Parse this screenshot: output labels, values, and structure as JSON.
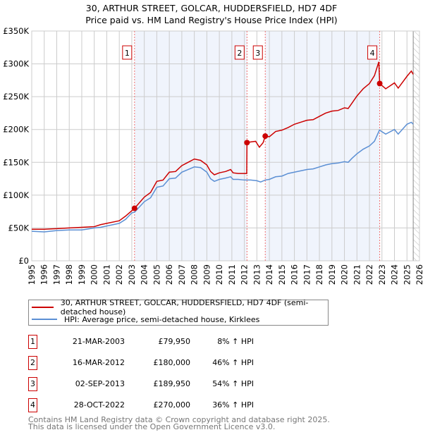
{
  "header": {
    "title": "30, ARTHUR STREET, GOLCAR, HUDDERSFIELD, HD7 4DF",
    "subtitle": "Price paid vs. HM Land Registry's House Price Index (HPI)"
  },
  "chart_data": {
    "type": "line",
    "title": "30, ARTHUR STREET, GOLCAR, HUDDERSFIELD, HD7 4DF",
    "subtitle": "Price paid vs. HM Land Registry's House Price Index (HPI)",
    "xlim": [
      1995,
      2026
    ],
    "ylim": [
      0,
      350000
    ],
    "x_ticks": [
      "1995",
      "1996",
      "1997",
      "1998",
      "1999",
      "2000",
      "2001",
      "2002",
      "2003",
      "2004",
      "2005",
      "2006",
      "2007",
      "2008",
      "2009",
      "2010",
      "2011",
      "2012",
      "2013",
      "2014",
      "2015",
      "2016",
      "2017",
      "2018",
      "2019",
      "2020",
      "2021",
      "2022",
      "2023",
      "2024",
      "2025",
      "2026"
    ],
    "y_ticks": [
      {
        "value": 0,
        "label": "£0"
      },
      {
        "value": 50000,
        "label": "£50K"
      },
      {
        "value": 100000,
        "label": "£100K"
      },
      {
        "value": 150000,
        "label": "£150K"
      },
      {
        "value": 200000,
        "label": "£200K"
      },
      {
        "value": 250000,
        "label": "£250K"
      },
      {
        "value": 300000,
        "label": "£300K"
      },
      {
        "value": 350000,
        "label": "£350K"
      }
    ],
    "grid": true,
    "forecast_start": 2025.5,
    "series": [
      {
        "name": "30, ARTHUR STREET, GOLCAR, HUDDERSFIELD, HD7 4DF (semi-detached house)",
        "color": "#cc0000",
        "x": [
          1995,
          1996,
          1997,
          1998,
          1999,
          2000,
          2000.5,
          2001,
          2002,
          2002.5,
          2003.22,
          2004,
          2004.5,
          2005,
          2005.5,
          2006,
          2006.5,
          2007,
          2007.5,
          2008,
          2008.5,
          2009,
          2009.3,
          2009.6,
          2010,
          2010.5,
          2010.9,
          2011.1,
          2011.5,
          2012.19,
          2012.21,
          2012.5,
          2012.9,
          2013.2,
          2013.5,
          2013.67,
          2014,
          2014.5,
          2015,
          2015.5,
          2016,
          2016.5,
          2017,
          2017.5,
          2018,
          2018.5,
          2019,
          2019.5,
          2020,
          2020.3,
          2020.6,
          2021,
          2021.5,
          2022,
          2022.4,
          2022.75,
          2022.82,
          2023.3,
          2024,
          2024.3,
          2025,
          2025.35,
          2025.5
        ],
        "y": [
          48000,
          48000,
          49000,
          50000,
          51000,
          52000,
          55000,
          57000,
          61000,
          68000,
          79950,
          97000,
          104000,
          121000,
          123000,
          135000,
          136000,
          145000,
          150000,
          155000,
          153000,
          146000,
          136000,
          131000,
          134000,
          136000,
          139000,
          134000,
          133000,
          133000,
          180000,
          181000,
          182000,
          173000,
          180000,
          189950,
          189000,
          197000,
          199000,
          203000,
          208000,
          211000,
          214000,
          215000,
          220000,
          225000,
          228000,
          229000,
          233000,
          232000,
          240000,
          251000,
          262000,
          270000,
          282000,
          303000,
          270000,
          262000,
          271000,
          263000,
          281000,
          289000,
          284000
        ]
      },
      {
        "name": "HPI: Average price, semi-detached house, Kirklees",
        "color": "#5b8fd4",
        "x": [
          1995,
          1996,
          1997,
          1998,
          1999,
          2000,
          2000.5,
          2001,
          2002,
          2002.5,
          2003,
          2003.22,
          2004,
          2004.5,
          2005,
          2005.5,
          2006,
          2006.5,
          2007,
          2007.5,
          2008,
          2008.5,
          2009,
          2009.3,
          2009.6,
          2010,
          2010.5,
          2010.9,
          2011.1,
          2011.5,
          2012,
          2012.5,
          2013,
          2013.3,
          2013.67,
          2014,
          2014.5,
          2015,
          2015.5,
          2016,
          2016.5,
          2017,
          2017.5,
          2018,
          2018.5,
          2019,
          2019.5,
          2020,
          2020.3,
          2020.6,
          2021,
          2021.5,
          2022,
          2022.4,
          2022.8,
          2023.3,
          2024,
          2024.3,
          2025,
          2025.35,
          2025.5
        ],
        "y": [
          45000,
          44000,
          46000,
          47000,
          47000,
          50000,
          51000,
          53000,
          57000,
          63000,
          73000,
          74000,
          90000,
          96000,
          112000,
          114000,
          125000,
          126000,
          135000,
          139000,
          143000,
          142000,
          135000,
          125000,
          121000,
          124000,
          126000,
          128000,
          124000,
          124000,
          123000,
          123000,
          122000,
          120000,
          123000,
          124000,
          128000,
          129000,
          133000,
          135000,
          137000,
          139000,
          140000,
          143000,
          146000,
          148000,
          149000,
          151000,
          150000,
          156000,
          163000,
          170000,
          175000,
          182000,
          199000,
          193000,
          200000,
          193000,
          208000,
          211000,
          208000
        ]
      }
    ],
    "sales": [
      {
        "id": "1",
        "x": 2003.22,
        "price": 79950
      },
      {
        "id": "2",
        "x": 2012.21,
        "price": 180000
      },
      {
        "id": "3",
        "x": 2013.67,
        "price": 189950
      },
      {
        "id": "4",
        "x": 2022.82,
        "price": 270000
      }
    ],
    "legend_position": "below"
  },
  "legend": {
    "property": "30, ARTHUR STREET, GOLCAR, HUDDERSFIELD, HD7 4DF (semi-detached house)",
    "hpi": "HPI: Average price, semi-detached house, Kirklees"
  },
  "table": [
    {
      "num": "1",
      "date": "21-MAR-2003",
      "price": "£79,950",
      "pct": "8% ↑ HPI"
    },
    {
      "num": "2",
      "date": "16-MAR-2012",
      "price": "£180,000",
      "pct": "46% ↑ HPI"
    },
    {
      "num": "3",
      "date": "02-SEP-2013",
      "price": "£189,950",
      "pct": "54% ↑ HPI"
    },
    {
      "num": "4",
      "date": "28-OCT-2022",
      "price": "£270,000",
      "pct": "36% ↑ HPI"
    }
  ],
  "footer": {
    "line1": "Contains HM Land Registry data © Crown copyright and database right 2025.",
    "line2": "This data is licensed under the Open Government Licence v3.0."
  }
}
